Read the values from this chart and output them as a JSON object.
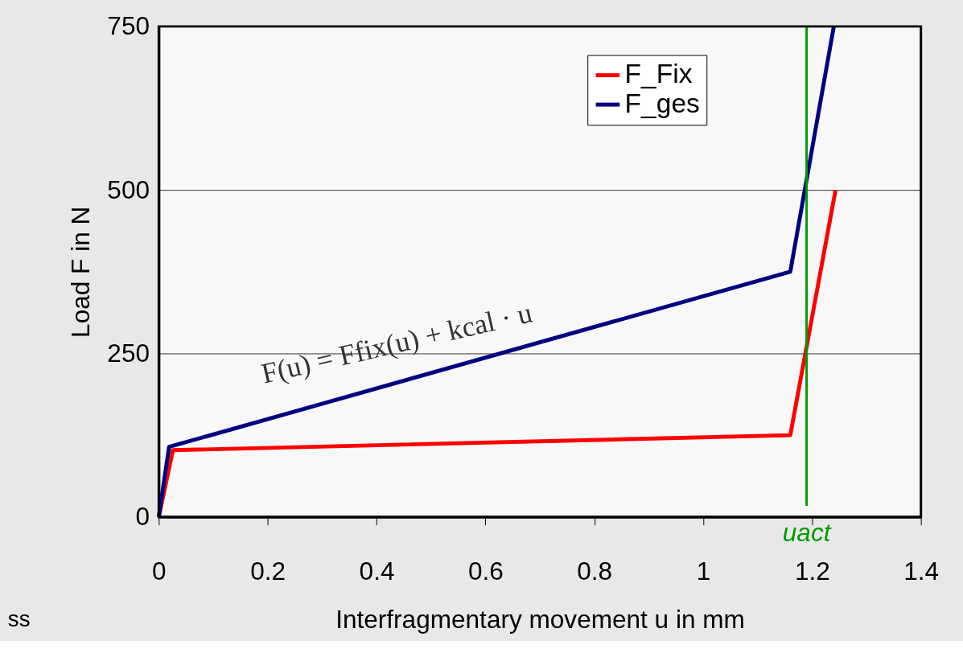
{
  "chart_data": {
    "type": "line",
    "xlabel": "Interfragmentary movement u in mm",
    "ylabel": "Load F in N",
    "series": [
      {
        "name": "F_Fix",
        "color": "#ff0000",
        "x": [
          0,
          0.026,
          1.16,
          1.243
        ],
        "values": [
          0,
          102,
          125,
          499
        ]
      },
      {
        "name": "F_ges",
        "color": "#000080",
        "x": [
          0,
          0.019,
          1.16,
          1.24
        ],
        "values": [
          0,
          107,
          375,
          750
        ]
      }
    ],
    "xlim": [
      0,
      1.4
    ],
    "xticks": [
      0,
      0.2,
      0.4,
      0.6,
      0.8,
      1,
      1.2,
      1.4
    ],
    "ylim": [
      0,
      750
    ],
    "yticks": [
      0,
      250,
      500,
      750
    ],
    "grid": "y",
    "legend": "top right",
    "marker": "none",
    "line_style": "solid",
    "ref_lines": [
      {
        "axis": "x",
        "value": 1.19,
        "label": "uact",
        "color": "#009900"
      }
    ],
    "annotations": [
      "F(u) = Ffix(u) + kcal · u",
      "ss"
    ]
  }
}
